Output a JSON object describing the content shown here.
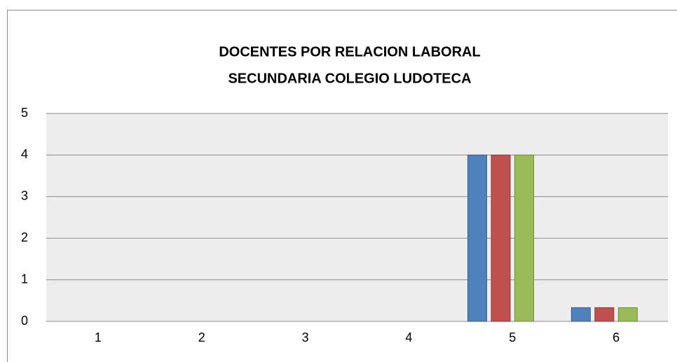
{
  "chart_data": {
    "type": "bar",
    "title": "DOCENTES POR RELACION LABORAL",
    "subtitle": "SECUNDARIA COLEGIO LUDOTECA",
    "categories": [
      "1",
      "2",
      "3",
      "4",
      "5",
      "6"
    ],
    "series": [
      {
        "color": "#4f81bd",
        "values": [
          0,
          0,
          0,
          0,
          4,
          0.33
        ]
      },
      {
        "color": "#c0504d",
        "values": [
          0,
          0,
          0,
          0,
          4,
          0.33
        ]
      },
      {
        "color": "#9bbb59",
        "values": [
          0,
          0,
          0,
          0,
          4,
          0.33
        ]
      }
    ],
    "ylim": [
      0,
      5
    ],
    "yticks": [
      0,
      1,
      2,
      3,
      4,
      5
    ],
    "grid": true
  }
}
